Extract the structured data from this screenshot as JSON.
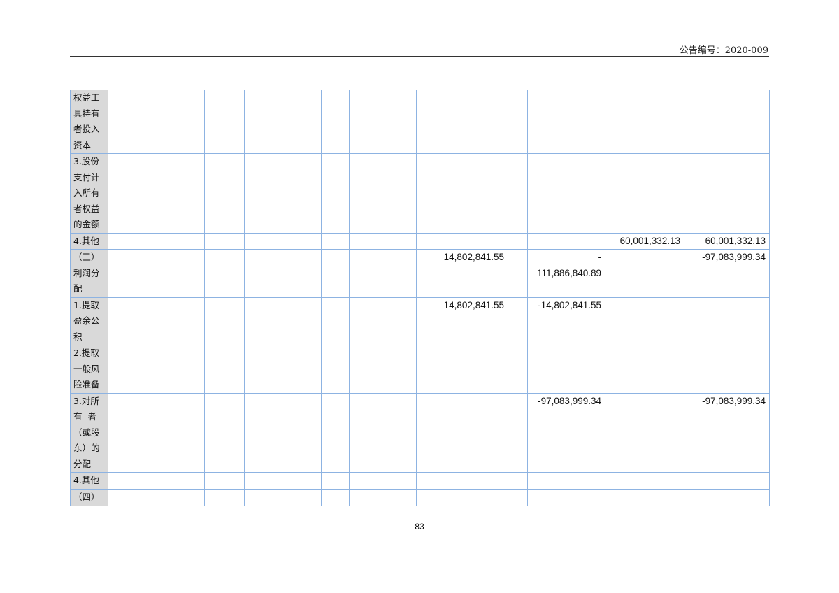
{
  "header": {
    "announcement_no": "公告编号：2020-009"
  },
  "table": {
    "rows": [
      {
        "label": "权益工\n具持有\n者投入\n资本",
        "cells": [
          "",
          "",
          "",
          "",
          "",
          "",
          "",
          "",
          "",
          "",
          "",
          "",
          ""
        ]
      },
      {
        "label": "3.股份\n支付计\n入所有\n者权益\n的金额",
        "cells": [
          "",
          "",
          "",
          "",
          "",
          "",
          "",
          "",
          "",
          "",
          "",
          "",
          ""
        ]
      },
      {
        "label": "4.其他",
        "cells": [
          "",
          "",
          "",
          "",
          "",
          "",
          "",
          "",
          "",
          "",
          "",
          "60,001,332.13",
          "60,001,332.13"
        ]
      },
      {
        "label": "（三）\n利润分\n配",
        "cells": [
          "",
          "",
          "",
          "",
          "",
          "",
          "",
          "",
          "14,802,841.55",
          "",
          "-\n111,886,840.89",
          "",
          "-97,083,999.34"
        ]
      },
      {
        "label": "1.提取\n盈余公\n积",
        "cells": [
          "",
          "",
          "",
          "",
          "",
          "",
          "",
          "",
          "14,802,841.55",
          "",
          "-14,802,841.55",
          "",
          ""
        ]
      },
      {
        "label": "2.提取\n一般风\n险准备",
        "cells": [
          "",
          "",
          "",
          "",
          "",
          "",
          "",
          "",
          "",
          "",
          "",
          "",
          ""
        ]
      },
      {
        "label": "3.对所\n有  者\n（或股\n东）的\n分配",
        "cells": [
          "",
          "",
          "",
          "",
          "",
          "",
          "",
          "",
          "",
          "",
          "-97,083,999.34",
          "",
          "-97,083,999.34"
        ]
      },
      {
        "label": "4.其他",
        "cells": [
          "",
          "",
          "",
          "",
          "",
          "",
          "",
          "",
          "",
          "",
          "",
          "",
          ""
        ]
      },
      {
        "label": "（四）",
        "cells": [
          "",
          "",
          "",
          "",
          "",
          "",
          "",
          "",
          "",
          "",
          "",
          "",
          ""
        ]
      }
    ]
  },
  "footer": {
    "page_number": "83"
  }
}
